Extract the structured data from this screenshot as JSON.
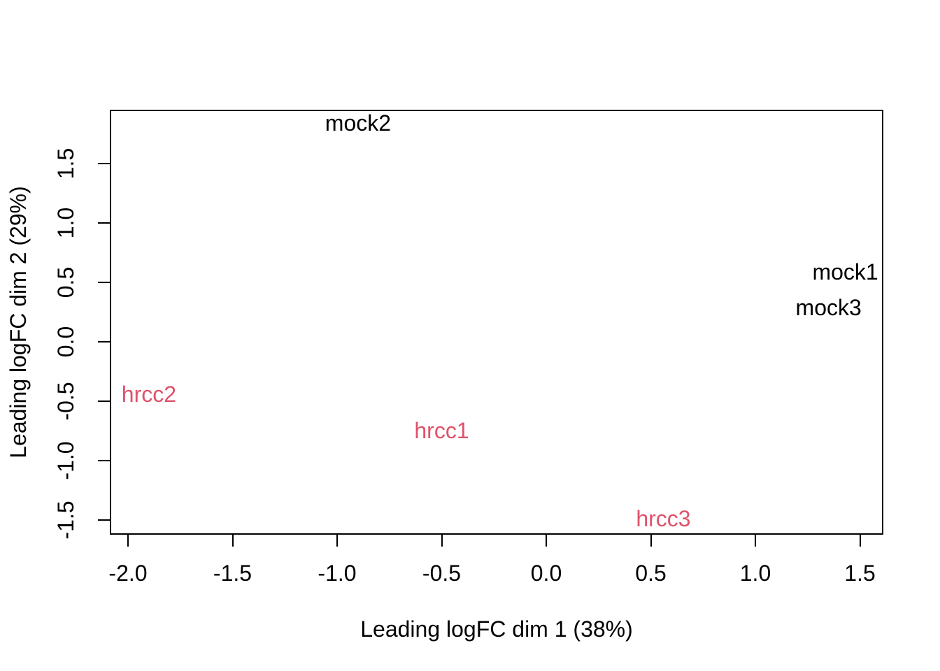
{
  "figure": {
    "background": "#ffffff",
    "border_color": "#000000"
  },
  "colors": {
    "mock_series": "#000000",
    "hrcc_series": "#DF536B"
  },
  "chart_data": {
    "type": "scatter",
    "title": "",
    "xlabel": "Leading logFC dim 1 (38%)",
    "ylabel": "Leading logFC dim 2 (29%)",
    "xlim": [
      -2.087,
      1.612
    ],
    "ylim": [
      -1.624,
      1.953
    ],
    "x_ticks": [
      -2.0,
      -1.5,
      -1.0,
      -0.5,
      0.0,
      0.5,
      1.0,
      1.5
    ],
    "y_ticks": [
      -1.5,
      -1.0,
      -0.5,
      0.0,
      0.5,
      1.0,
      1.5
    ],
    "grid": false,
    "legend_position": "none",
    "point_style": "text-labels",
    "series": [
      {
        "name": "mock",
        "color": "#000000",
        "points": [
          {
            "label": "mock2",
            "x": -0.9,
            "y": 1.84
          },
          {
            "label": "mock1",
            "x": 1.43,
            "y": 0.59
          },
          {
            "label": "mock3",
            "x": 1.35,
            "y": 0.29
          }
        ]
      },
      {
        "name": "hrcc",
        "color": "#DF536B",
        "points": [
          {
            "label": "hrcc2",
            "x": -1.9,
            "y": -0.44
          },
          {
            "label": "hrcc1",
            "x": -0.5,
            "y": -0.75
          },
          {
            "label": "hrcc3",
            "x": 0.56,
            "y": -1.49
          }
        ]
      }
    ]
  }
}
